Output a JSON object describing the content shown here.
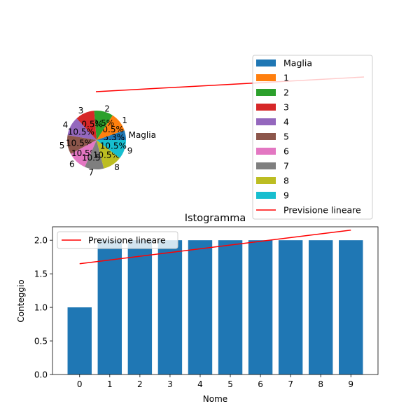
{
  "chart_data": [
    {
      "type": "pie",
      "labels": [
        "Maglia",
        "1",
        "2",
        "3",
        "4",
        "5",
        "6",
        "7",
        "8",
        "9"
      ],
      "values": [
        5.3,
        10.5,
        10.5,
        10.5,
        10.5,
        10.5,
        10.5,
        10.5,
        10.5,
        10.5
      ],
      "value_labels": [
        "5.3%",
        "10.5%",
        "10.5%",
        "10.5%",
        "10.5%",
        "10.5%",
        "10.5%",
        "10.5%",
        "10.5%",
        "10.5%"
      ],
      "colors": [
        "#1f77b4",
        "#ff7f0e",
        "#2ca02c",
        "#d62728",
        "#9467bd",
        "#8c564b",
        "#e377c2",
        "#7f7f7f",
        "#bcbd22",
        "#17becf"
      ],
      "legend": {
        "placement": "top-right",
        "entries": [
          "Maglia",
          "1",
          "2",
          "3",
          "4",
          "5",
          "6",
          "7",
          "8",
          "9",
          "Previsione lineare"
        ]
      },
      "trend_line": {
        "name": "Previsione lineare",
        "color": "#ff0000"
      }
    },
    {
      "type": "bar",
      "title": "Istogramma",
      "xlabel": "Nome",
      "ylabel": "Conteggio",
      "categories": [
        "0",
        "1",
        "2",
        "3",
        "4",
        "5",
        "6",
        "7",
        "8",
        "9"
      ],
      "values": [
        1,
        2,
        2,
        2,
        2,
        2,
        2,
        2,
        2,
        2
      ],
      "ylim": [
        0,
        2.2
      ],
      "yticks": [
        "0.0",
        "0.5",
        "1.0",
        "1.5",
        "2.0"
      ],
      "bar_color": "#1f77b4",
      "trend_line": {
        "name": "Previsione lineare",
        "start": 1.65,
        "end": 2.15,
        "color": "#ff0000"
      },
      "legend": {
        "placement": "top-left",
        "entries": [
          "Previsione lineare"
        ]
      }
    }
  ]
}
